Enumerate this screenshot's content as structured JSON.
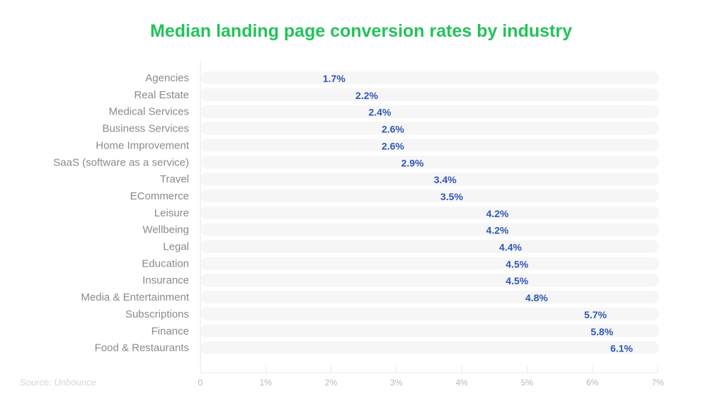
{
  "chart_data": {
    "type": "bar",
    "orientation": "horizontal",
    "title": "Median landing page conversion rates by industry",
    "source": "Source: Unbounce",
    "categories": [
      "Agencies",
      "Real Estate",
      "Medical Services",
      "Business Services",
      "Home Improvement",
      "SaaS (software as a service)",
      "Travel",
      "ECommerce",
      "Leisure",
      "Wellbeing",
      "Legal",
      "Education",
      "Insurance",
      "Media & Entertainment",
      "Subscriptions",
      "Finance",
      "Food & Restaurants"
    ],
    "values": [
      1.7,
      2.2,
      2.4,
      2.6,
      2.6,
      2.9,
      3.4,
      3.5,
      4.2,
      4.2,
      4.4,
      4.5,
      4.5,
      4.8,
      5.7,
      5.8,
      6.1
    ],
    "value_labels": [
      "1.7%",
      "2.2%",
      "2.4%",
      "2.6%",
      "2.6%",
      "2.9%",
      "3.4%",
      "3.5%",
      "4.2%",
      "4.2%",
      "4.4%",
      "4.5%",
      "4.5%",
      "4.8%",
      "5.7%",
      "5.8%",
      "6.1%"
    ],
    "xlim": [
      0,
      7
    ],
    "x_ticks": [
      "0",
      "1%",
      "2%",
      "3%",
      "4%",
      "5%",
      "6%",
      "7%"
    ],
    "grid": "vertical",
    "colors": {
      "title": "#22c35a",
      "bar_start": "#8ea8dc",
      "bar_end": "#2d5bbd",
      "label": "#2f56b8",
      "track": "#f6f6f6"
    }
  }
}
